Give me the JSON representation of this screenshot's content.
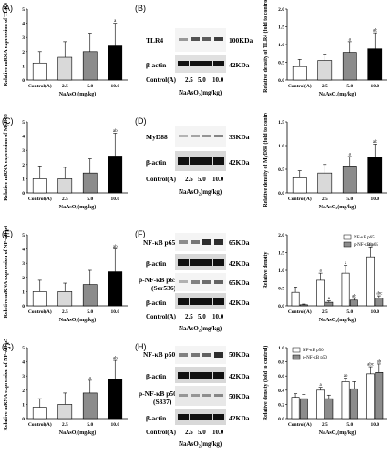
{
  "panels": {
    "A": {
      "label": "(A)"
    },
    "B": {
      "label": "(B)"
    },
    "C": {
      "label": "(C)"
    },
    "D": {
      "label": "(D)"
    },
    "E": {
      "label": "(E)"
    },
    "F": {
      "label": "(F)"
    },
    "G": {
      "label": "(G)"
    },
    "H": {
      "label": "(H)"
    }
  },
  "common": {
    "lanes": [
      "Control(A)",
      "2.5",
      "5.0",
      "10.0"
    ],
    "xtitle": "NaAsO₂(mg/kg)",
    "beta_actin": "β-actin",
    "kda_42": "42KDa"
  },
  "blots": {
    "B": {
      "protein": "TLR4",
      "kda": "100KDa"
    },
    "D": {
      "protein": "MyD88",
      "kda": "33KDa"
    },
    "F": {
      "protein1": "NF-κB p65",
      "kda1": "65KDa",
      "protein2": "p-NF-κB p65",
      "protein2b": "(Ser536)",
      "kda2": "65KDa"
    },
    "H": {
      "protein1": "NF-κB p50",
      "kda1": "50KDa",
      "protein2": "p-NF-κB p50",
      "protein2b": "(S337)",
      "kda2": "50KDa"
    }
  },
  "chart_data": [
    {
      "id": "A",
      "type": "bar",
      "ylabel": "Relative mRNA expression of TLR4",
      "categories": [
        "Control(A)",
        "2.5",
        "5.0",
        "10.0"
      ],
      "xlabel": "NaAsO₂(mg/kg)",
      "ylim": [
        0,
        5
      ],
      "yticks": [
        0,
        1,
        2,
        3,
        4,
        5
      ],
      "values": [
        1.2,
        1.6,
        2.0,
        2.4
      ],
      "errors": [
        0.8,
        1.1,
        1.3,
        1.6
      ],
      "annotations": [
        "",
        "",
        "",
        "a"
      ],
      "colors": [
        "#ffffff",
        "#d9d9d9",
        "#8c8c8c",
        "#000000"
      ]
    },
    {
      "id": "B",
      "type": "bar",
      "ylabel": "Relative density of TLR4 (fold to control)",
      "categories": [
        "Control(A)",
        "2.5",
        "5.0",
        "10.0"
      ],
      "xlabel": "NaAsO₂(mg/kg)",
      "ylim": [
        0,
        2.0
      ],
      "yticks": [
        0.0,
        0.5,
        1.0,
        1.5,
        2.0
      ],
      "values": [
        0.38,
        0.55,
        0.78,
        0.88
      ],
      "errors": [
        0.2,
        0.18,
        0.3,
        0.45
      ],
      "annotations": [
        "",
        "",
        "a",
        "ab"
      ],
      "colors": [
        "#ffffff",
        "#d9d9d9",
        "#8c8c8c",
        "#000000"
      ]
    },
    {
      "id": "C",
      "type": "bar",
      "ylabel": "Relative mRNA expression of MyD88",
      "categories": [
        "Control(A)",
        "2.5",
        "5.0",
        "10.0"
      ],
      "xlabel": "NaAsO₂(mg/kg)",
      "ylim": [
        0,
        5
      ],
      "yticks": [
        0,
        1,
        2,
        3,
        4,
        5
      ],
      "values": [
        1.0,
        1.0,
        1.4,
        2.6
      ],
      "errors": [
        0.9,
        0.8,
        1.0,
        1.6
      ],
      "annotations": [
        "",
        "",
        "",
        "ab"
      ],
      "colors": [
        "#ffffff",
        "#d9d9d9",
        "#8c8c8c",
        "#000000"
      ]
    },
    {
      "id": "D",
      "type": "bar",
      "ylabel": "Relative density of MyD88 (fold to control)",
      "categories": [
        "Control(A)",
        "2.5",
        "5.0",
        "10.0"
      ],
      "xlabel": "NaAsO₂(mg/kg)",
      "ylim": [
        0,
        1.5
      ],
      "yticks": [
        0.0,
        0.5,
        1.0,
        1.5
      ],
      "values": [
        0.32,
        0.42,
        0.57,
        0.75
      ],
      "errors": [
        0.15,
        0.18,
        0.2,
        0.28
      ],
      "annotations": [
        "",
        "",
        "a",
        "ab"
      ],
      "colors": [
        "#ffffff",
        "#d9d9d9",
        "#8c8c8c",
        "#000000"
      ]
    },
    {
      "id": "E",
      "type": "bar",
      "ylabel": "Relative mRNA expression of NF-κB p65",
      "categories": [
        "Control(A)",
        "2.5",
        "5.0",
        "10.0"
      ],
      "xlabel": "NaAsO₂(mg/kg)",
      "ylim": [
        0,
        5
      ],
      "yticks": [
        0,
        1,
        2,
        3,
        4,
        5
      ],
      "values": [
        1.0,
        1.0,
        1.5,
        2.4
      ],
      "errors": [
        0.8,
        0.6,
        1.0,
        1.6
      ],
      "annotations": [
        "",
        "",
        "",
        "ab"
      ],
      "colors": [
        "#ffffff",
        "#d9d9d9",
        "#8c8c8c",
        "#000000"
      ]
    },
    {
      "id": "F",
      "type": "bar",
      "ylabel": "Relative density",
      "categories": [
        "Control(A)",
        "2.5",
        "5.0",
        "10.0"
      ],
      "xlabel": "NaAsO₂(mg/kg)",
      "ylim": [
        0,
        2.0
      ],
      "yticks": [
        0.0,
        0.5,
        1.0,
        1.5,
        2.0
      ],
      "series": [
        {
          "name": "NF-κB p65",
          "values": [
            0.38,
            0.72,
            0.92,
            1.38
          ],
          "errors": [
            0.15,
            0.2,
            0.22,
            0.28
          ],
          "annotations": [
            "",
            "a",
            "a",
            "ab"
          ],
          "color": "#ffffff"
        },
        {
          "name": "p-NF-κB p65",
          "values": [
            0.03,
            0.1,
            0.16,
            0.22
          ],
          "errors": [
            0.02,
            0.04,
            0.05,
            0.06
          ],
          "annotations": [
            "",
            "a",
            "ab",
            "abc"
          ],
          "color": "#8c8c8c"
        }
      ],
      "legend": "top-right"
    },
    {
      "id": "G",
      "type": "bar",
      "ylabel": "Relative mRNA expression of NF-κB p50",
      "categories": [
        "Control(A)",
        "2.5",
        "5.0",
        "10.0"
      ],
      "xlabel": "NaAsO₂(mg/kg)",
      "ylim": [
        0,
        5
      ],
      "yticks": [
        0,
        1,
        2,
        3,
        4,
        5
      ],
      "values": [
        0.8,
        1.0,
        1.8,
        2.8
      ],
      "errors": [
        0.6,
        0.8,
        0.9,
        1.3
      ],
      "annotations": [
        "",
        "",
        "a",
        "ab"
      ],
      "colors": [
        "#ffffff",
        "#d9d9d9",
        "#8c8c8c",
        "#000000"
      ]
    },
    {
      "id": "H",
      "type": "bar",
      "ylabel": "Relative density (fold to control)",
      "categories": [
        "Control(A)",
        "2.5",
        "5.0",
        "10.0"
      ],
      "xlabel": "NaAsO₂(mg/kg)",
      "ylim": [
        0,
        1.0
      ],
      "yticks": [
        0.0,
        0.2,
        0.4,
        0.6,
        0.8,
        1.0
      ],
      "series": [
        {
          "name": "NF-κB p50",
          "values": [
            0.3,
            0.4,
            0.52,
            0.63
          ],
          "errors": [
            0.05,
            0.04,
            0.05,
            0.1
          ],
          "annotations": [
            "",
            "a",
            "ab",
            "abc"
          ],
          "color": "#ffffff"
        },
        {
          "name": "p-NF-κB p50",
          "values": [
            0.28,
            0.28,
            0.42,
            0.65
          ],
          "errors": [
            0.06,
            0.05,
            0.1,
            0.12
          ],
          "annotations": [
            "",
            "",
            "",
            "ab"
          ],
          "color": "#8c8c8c"
        }
      ],
      "legend": "top-left"
    }
  ]
}
